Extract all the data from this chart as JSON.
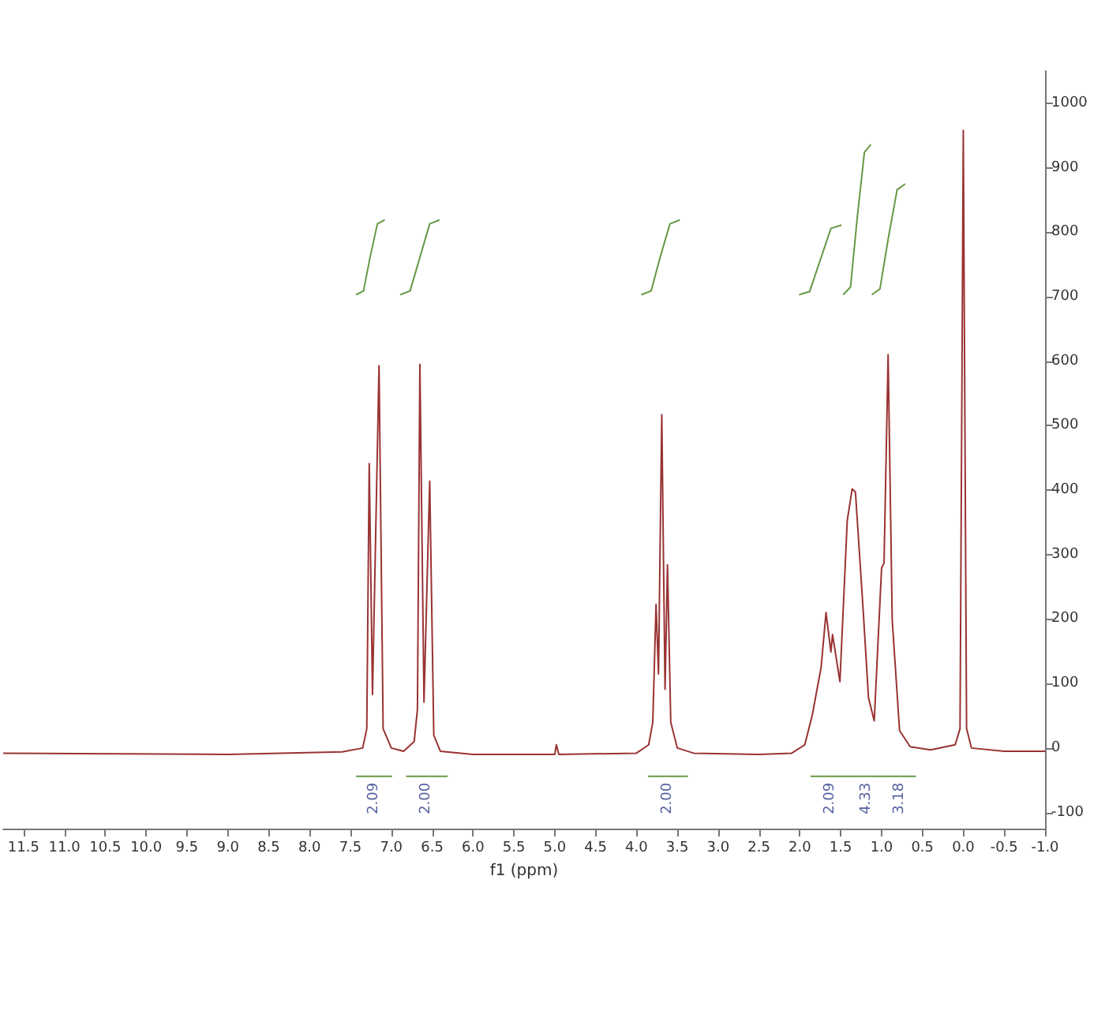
{
  "chart_data": {
    "type": "line",
    "xlabel": "f1 (ppm)",
    "xlim": [
      11.75,
      -1.0
    ],
    "ylim": [
      -125,
      1050
    ],
    "xticks": [
      11.5,
      {
        "value": 11,
        "label": "11.0"
      },
      10.5,
      {
        "value": 10,
        "label": "10.0"
      },
      9.5,
      {
        "value": 9,
        "label": "9.0"
      },
      8.5,
      {
        "value": 8,
        "label": "8.0"
      },
      7.5,
      {
        "value": 7,
        "label": "7.0"
      },
      6.5,
      {
        "value": 6,
        "label": "6.0"
      },
      5.5,
      {
        "value": 5,
        "label": "5.0"
      },
      4.5,
      {
        "value": 4,
        "label": "4.0"
      },
      3.5,
      {
        "value": 3,
        "label": "3.0"
      },
      2.5,
      {
        "value": 2,
        "label": "2.0"
      },
      1.5,
      {
        "value": 1,
        "label": "1.0"
      },
      0.5,
      {
        "value": 0,
        "label": "0.0"
      },
      -0.5,
      {
        "value": -1,
        "label": "-1.0"
      }
    ],
    "yticks": [
      -100,
      0,
      100,
      200,
      300,
      400,
      500,
      600,
      700,
      800,
      900,
      1000
    ],
    "grid": false,
    "marker": "none",
    "line_style": "solid",
    "series": [
      {
        "color": "#993333",
        "x": [
          11.75,
          9,
          7.6,
          7.35,
          7.3,
          7.27,
          7.23,
          7.15,
          7.1,
          7.0,
          6.85,
          6.72,
          6.68,
          6.65,
          6.6,
          6.53,
          6.48,
          6.4,
          6.0,
          5.0,
          4.98,
          4.95,
          4.0,
          3.85,
          3.8,
          3.76,
          3.73,
          3.69,
          3.65,
          3.62,
          3.58,
          3.5,
          3.3,
          2.5,
          2.1,
          1.94,
          1.85,
          1.74,
          1.68,
          1.62,
          1.6,
          1.51,
          1.42,
          1.36,
          1.32,
          1.23,
          1.16,
          1.09,
          1.0,
          0.97,
          0.92,
          0.87,
          0.78,
          0.65,
          0.4,
          0.1,
          0.04,
          0.0,
          -0.04,
          -0.1,
          -0.5,
          -1.0
        ],
        "values": [
          -8,
          -10,
          -6,
          0,
          30,
          441,
          83,
          593,
          30,
          0,
          -5,
          10,
          60,
          595,
          71,
          414,
          20,
          -5,
          -10,
          -10,
          5,
          -10,
          -8,
          5,
          40,
          223,
          115,
          517,
          91,
          284,
          40,
          0,
          -8,
          -10,
          -8,
          5,
          50,
          125,
          210,
          149,
          176,
          103,
          353,
          402,
          397,
          223,
          78,
          42,
          279,
          287,
          610,
          199,
          27,
          2,
          -3,
          5,
          30,
          958,
          30,
          0,
          -5,
          -5
        ]
      },
      {
        "color": "#669944",
        "x": [
          7.43,
          7.34,
          7.26,
          7.17,
          7.08,
          6.98,
          6.89,
          6.77,
          6.65,
          6.53,
          6.41,
          5.2,
          3.94,
          3.82,
          3.71,
          3.59,
          3.47,
          2.7,
          2.01,
          1.88,
          1.75,
          1.62,
          1.49,
          1.48,
          1.47,
          1.38,
          1.3,
          1.21,
          1.13,
          1.125,
          1.12,
          1.02,
          0.92,
          0.81,
          0.71
        ],
        "values": [
          703,
          709,
          761,
          813,
          819,
          null,
          703,
          709,
          761,
          813,
          819,
          null,
          703,
          709,
          761,
          813,
          819,
          null,
          703,
          708,
          757,
          806,
          811,
          null,
          703,
          715,
          820,
          924,
          936,
          null,
          703,
          712,
          789,
          866,
          875
        ]
      },
      {
        "color": "#669944",
        "x": [
          7.43,
          7.21,
          6.99,
          6.9,
          6.82,
          6.57,
          6.31,
          5.0,
          3.86,
          3.62,
          3.37,
          2.5,
          1.87,
          1.63,
          1.18,
          0.78,
          0.58
        ],
        "values": [
          -44,
          -44,
          -44,
          null,
          -44,
          -44,
          -44,
          null,
          -44,
          -44,
          -44,
          null,
          -44,
          -44,
          -44,
          -44,
          -44
        ]
      }
    ],
    "annotations": [
      {
        "text": "2.09",
        "x": 7.21,
        "y": -44
      },
      {
        "text": "2.00",
        "x": 6.57,
        "y": -44
      },
      {
        "text": "2.00",
        "x": 3.62,
        "y": -44
      },
      {
        "text": "2.09",
        "x": 1.63,
        "y": -44
      },
      {
        "text": "4.33",
        "x": 1.18,
        "y": -44
      },
      {
        "text": "3.18",
        "x": 0.78,
        "y": -44
      }
    ]
  }
}
